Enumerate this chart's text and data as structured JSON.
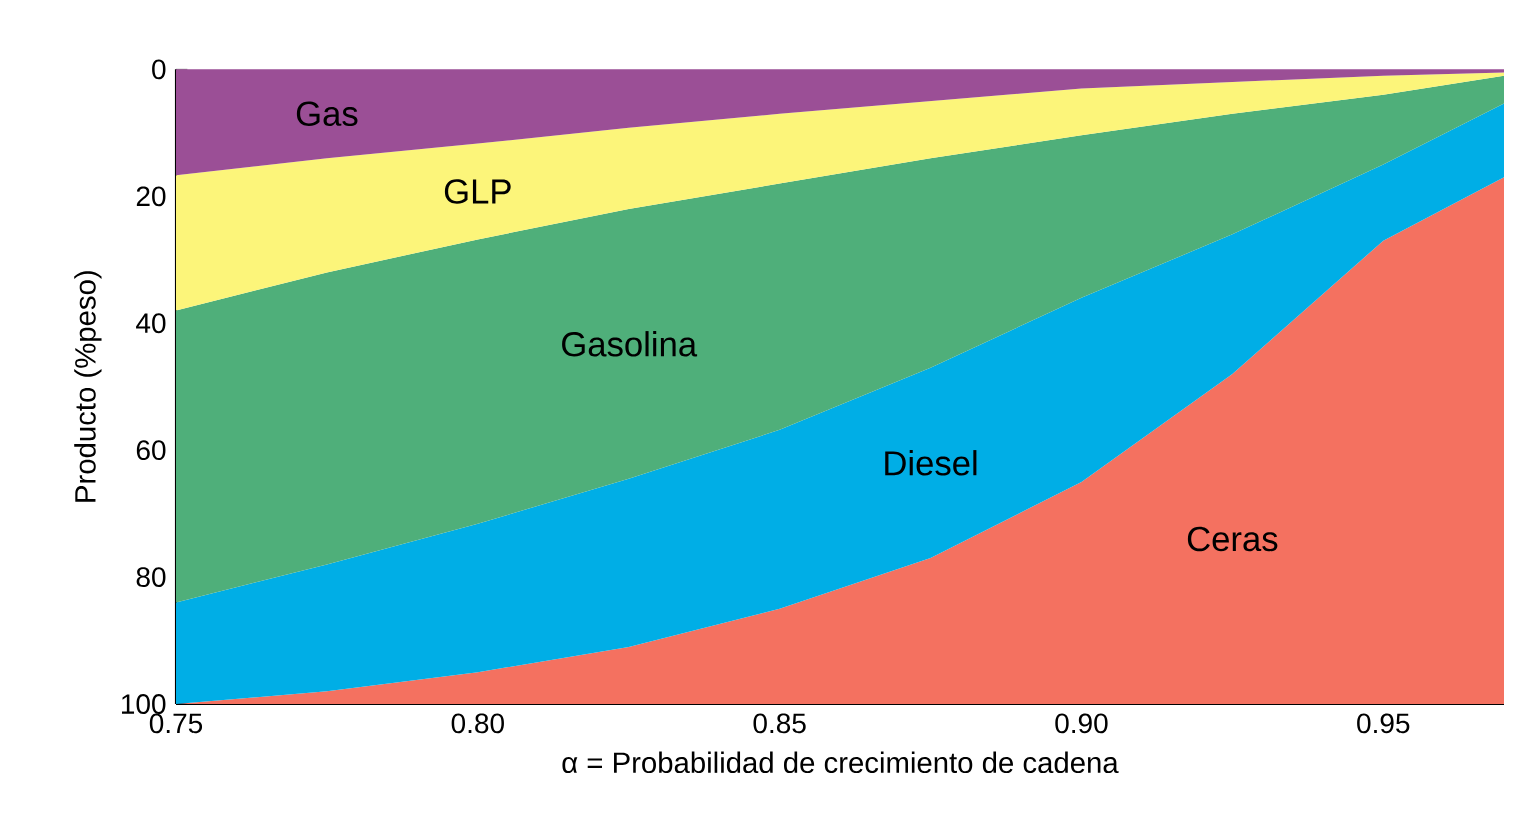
{
  "chart_data": {
    "type": "area",
    "stacked": true,
    "x": [
      0.75,
      0.775,
      0.8,
      0.825,
      0.85,
      0.875,
      0.9,
      0.925,
      0.95,
      0.97
    ],
    "series": [
      {
        "name": "Gas",
        "color": "#9b4f96",
        "values": [
          16.7,
          14,
          11.7,
          9.2,
          7,
          5,
          3,
          2,
          1,
          0.5
        ]
      },
      {
        "name": "GLP",
        "color": "#fcf57a",
        "values": [
          21.3,
          18,
          15.1,
          12.8,
          11,
          9,
          7.4,
          5,
          3,
          0.5
        ]
      },
      {
        "name": "Gasolina",
        "color": "#4faf7a",
        "values": [
          46,
          46,
          44.8,
          42.5,
          38.8,
          33,
          25.6,
          19,
          11,
          4.4
        ]
      },
      {
        "name": "Diesel",
        "color": "#00aee6",
        "values": [
          16,
          20,
          23.4,
          26.5,
          28.2,
          30,
          29,
          22,
          12,
          11.6
        ]
      },
      {
        "name": "Ceras",
        "color": "#f47160",
        "values": [
          0,
          2,
          5,
          9,
          15,
          23,
          35,
          52,
          73,
          83
        ]
      }
    ],
    "xlabel": "α = Probabilidad de crecimiento de cadena",
    "ylabel": "Producto (%peso)",
    "xlim": [
      0.75,
      0.97
    ],
    "ylim": [
      100,
      0
    ],
    "xticks": [
      {
        "value": 0.75,
        "label": "0.75"
      },
      {
        "value": 0.8,
        "label": "0.80"
      },
      {
        "value": 0.85,
        "label": "0.85"
      },
      {
        "value": 0.9,
        "label": "0.90"
      },
      {
        "value": 0.95,
        "label": "0.95"
      }
    ],
    "yticks": [
      0,
      20,
      40,
      60,
      80,
      100
    ]
  }
}
